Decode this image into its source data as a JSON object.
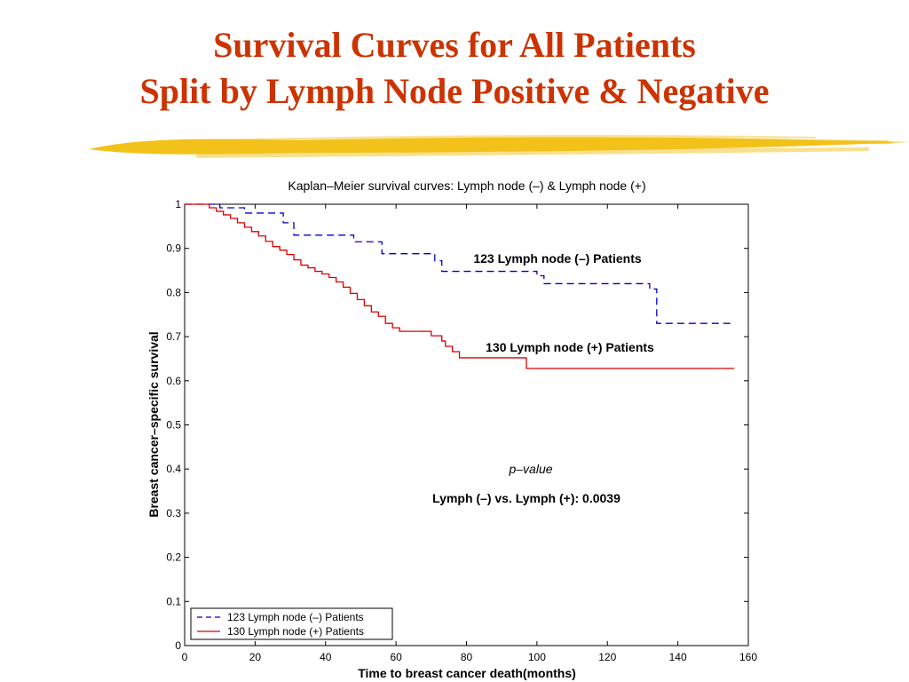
{
  "slide": {
    "title_line1": "Survival Curves for All Patients",
    "title_line2": "Split by Lymph Node Positive & Negative",
    "title_color": "#cc3300",
    "brush_color": "#f2c21b"
  },
  "chart_data": {
    "type": "line",
    "title": "Kaplan–Meier survival curves: Lymph node (–) & Lymph node (+)",
    "xlabel": "Time to breast cancer death(months)",
    "ylabel": "Breast cancer–specific survival",
    "xlim": [
      0,
      160
    ],
    "ylim": [
      0,
      1
    ],
    "xticks": [
      0,
      20,
      40,
      60,
      80,
      100,
      120,
      140,
      160
    ],
    "xtick_labels": [
      "0",
      "20",
      "40",
      "60",
      "80",
      "100",
      "120",
      "140",
      "160"
    ],
    "yticks": [
      0,
      0.1,
      0.2,
      0.3,
      0.4,
      0.5,
      0.6,
      0.7,
      0.8,
      0.9,
      1
    ],
    "ytick_labels": [
      "0",
      "0.1",
      "0.2",
      "0.3",
      "0.4",
      "0.5",
      "0.6",
      "0.7",
      "0.8",
      "0.9",
      "1"
    ],
    "grid": false,
    "legend_position": "bottom-left",
    "series": [
      {
        "name": "123 Lymph node (–) Patients",
        "color": "#0000cc",
        "style": "dashed",
        "step": true,
        "x": [
          0,
          10,
          17,
          28,
          31,
          48,
          56,
          71,
          73,
          100,
          102,
          132,
          134,
          156
        ],
        "y": [
          1,
          0.992,
          0.98,
          0.958,
          0.93,
          0.915,
          0.888,
          0.872,
          0.848,
          0.838,
          0.82,
          0.808,
          0.73,
          0.73
        ]
      },
      {
        "name": "130 Lymph node (+) Patients",
        "color": "#dd0000",
        "style": "solid",
        "step": true,
        "x": [
          0,
          7,
          9,
          11,
          13,
          15,
          17,
          19,
          21,
          23,
          25,
          27,
          29,
          31,
          33,
          35,
          37,
          39,
          41,
          43,
          45,
          47,
          49,
          51,
          53,
          55,
          57,
          59,
          61,
          70,
          73,
          74,
          76,
          78,
          95,
          97,
          156
        ],
        "y": [
          1,
          0.992,
          0.984,
          0.976,
          0.968,
          0.958,
          0.948,
          0.938,
          0.928,
          0.916,
          0.904,
          0.896,
          0.886,
          0.874,
          0.862,
          0.856,
          0.848,
          0.842,
          0.834,
          0.824,
          0.812,
          0.798,
          0.784,
          0.77,
          0.756,
          0.746,
          0.73,
          0.72,
          0.712,
          0.702,
          0.69,
          0.678,
          0.666,
          0.652,
          0.652,
          0.628,
          0.628
        ]
      }
    ],
    "annotations": {
      "neg_label": "123 Lymph node (–) Patients",
      "pos_label": "130 Lymph node (+) Patients",
      "pvalue_heading": "p–value",
      "pvalue_text": "Lymph (–) vs. Lymph (+): 0.0039"
    }
  }
}
